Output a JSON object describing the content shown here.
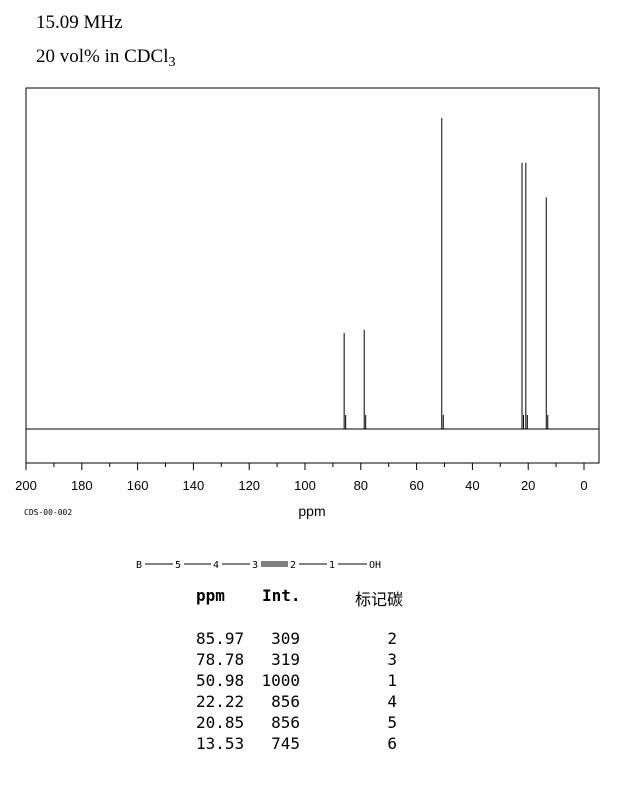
{
  "header": {
    "frequency": "15.09 MHz",
    "solvent_prefix": "20 vol% in CDCl",
    "solvent_subscript": "3"
  },
  "code": "CDS-00-002",
  "structure": {
    "atoms": [
      "B",
      "5",
      "4",
      "3",
      "2",
      "1",
      "OH"
    ]
  },
  "table": {
    "headers": {
      "ppm": "ppm",
      "int": "Int.",
      "assign": "标记碳"
    },
    "rows": [
      {
        "ppm": "85.97",
        "int": "309",
        "assign": "2"
      },
      {
        "ppm": "78.78",
        "int": "319",
        "assign": "3"
      },
      {
        "ppm": "50.98",
        "int": "1000",
        "assign": "1"
      },
      {
        "ppm": "22.22",
        "int": "856",
        "assign": "4"
      },
      {
        "ppm": "20.85",
        "int": "856",
        "assign": "5"
      },
      {
        "ppm": "13.53",
        "int": "745",
        "assign": "6"
      }
    ]
  },
  "chart_data": {
    "type": "bar",
    "xlabel": "ppm",
    "xlim": [
      200,
      -5
    ],
    "xticks": [
      200,
      180,
      160,
      140,
      120,
      100,
      80,
      60,
      40,
      20,
      0
    ],
    "peaks": [
      {
        "x": 85.97,
        "y": 309
      },
      {
        "x": 78.78,
        "y": 319
      },
      {
        "x": 50.98,
        "y": 1000
      },
      {
        "x": 22.22,
        "y": 856
      },
      {
        "x": 20.85,
        "y": 856
      },
      {
        "x": 13.53,
        "y": 745
      }
    ],
    "ylim": [
      0,
      1000
    ]
  }
}
